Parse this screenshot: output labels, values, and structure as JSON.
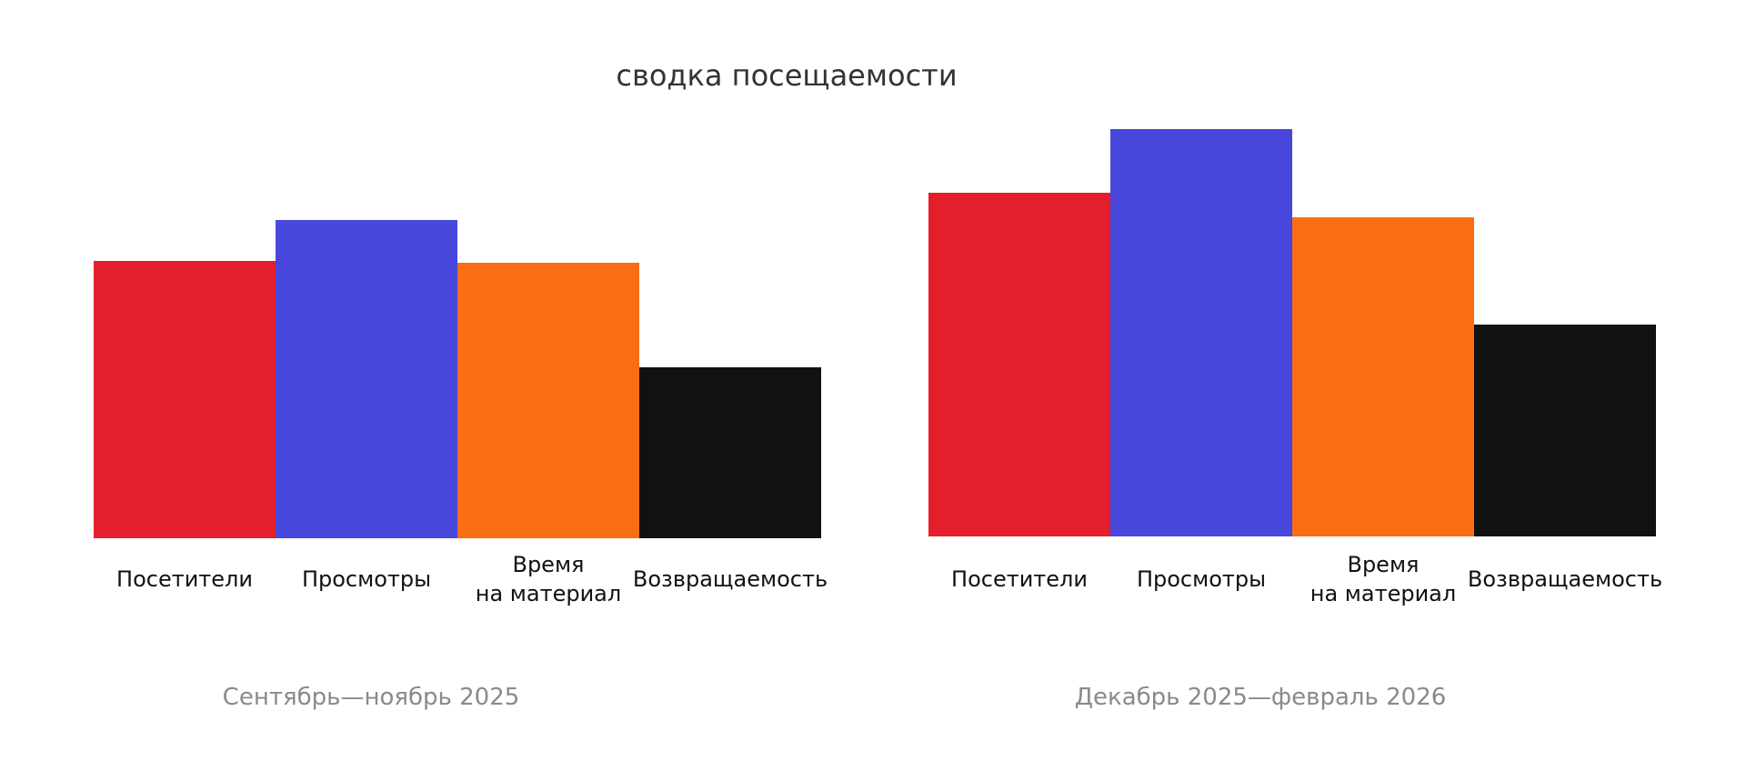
{
  "chart_data": [
    {
      "type": "bar",
      "title": "сводка посещаемости",
      "period_label": "Сентябрь—ноябрь 2025",
      "categories": [
        "Посетители",
        "Просмотры",
        "Время на материал",
        "Возвращаемость"
      ],
      "category_label_lines": [
        [
          "Посетители"
        ],
        [
          "Просмотры"
        ],
        [
          "Время",
          "на материал"
        ],
        [
          "Возвращаемость"
        ]
      ],
      "values": [
        305,
        350,
        303,
        188
      ],
      "colors": [
        "#e41e2a",
        "#4747dc",
        "#fb6d13",
        "#111111"
      ],
      "ylim": [
        0,
        450
      ],
      "grid": false,
      "legend": "none"
    },
    {
      "type": "bar",
      "period_label": "Декабрь 2025—февраль 2026",
      "categories": [
        "Посетители",
        "Просмотры",
        "Время на материал",
        "Возвращаемость"
      ],
      "category_label_lines": [
        [
          "Посетители"
        ],
        [
          "Просмотры"
        ],
        [
          "Время",
          "на материал"
        ],
        [
          "Возвращаемость"
        ]
      ],
      "values": [
        378,
        448,
        351,
        233
      ],
      "colors": [
        "#e41e2a",
        "#4747dc",
        "#fb6d13",
        "#111111"
      ],
      "ylim": [
        0,
        450
      ],
      "grid": false,
      "legend": "none"
    }
  ]
}
